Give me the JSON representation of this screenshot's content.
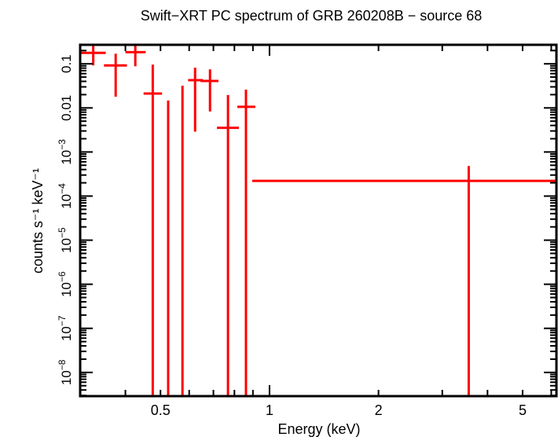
{
  "chart_data": {
    "type": "scatter",
    "title": "Swift−XRT PC spectrum of GRB 260208B − source 68",
    "xlabel": "Energy (keV)",
    "ylabel": "counts s⁻¹ keV⁻¹",
    "xscale": "log",
    "yscale": "log",
    "xlim": [
      0.3,
      6.2
    ],
    "ylim": [
      2.9e-09,
      0.27
    ],
    "grid": false,
    "x_tick_labels": [
      {
        "value": 0.5,
        "label": "0.5"
      },
      {
        "value": 1,
        "label": "1"
      },
      {
        "value": 2,
        "label": "2"
      },
      {
        "value": 5,
        "label": "5"
      }
    ],
    "y_tick_labels": [
      {
        "value": 0.1,
        "base": "0.1",
        "exp": ""
      },
      {
        "value": 0.01,
        "base": "0.01",
        "exp": ""
      },
      {
        "value": 0.001,
        "base": "10",
        "exp": "−3"
      },
      {
        "value": 0.0001,
        "base": "10",
        "exp": "−4"
      },
      {
        "value": 1e-05,
        "base": "10",
        "exp": "−5"
      },
      {
        "value": 1e-06,
        "base": "10",
        "exp": "−6"
      },
      {
        "value": 1e-07,
        "base": "10",
        "exp": "−7"
      },
      {
        "value": 1e-08,
        "base": "10",
        "exp": "−8"
      }
    ],
    "series": [
      {
        "color": "#ff0000",
        "points": [
          {
            "x": 0.326,
            "xlo": 0.3,
            "xhi": 0.353,
            "y": 0.177,
            "ylo": 0.092,
            "yhi": 0.27
          },
          {
            "x": 0.376,
            "xlo": 0.349,
            "xhi": 0.404,
            "y": 0.092,
            "ylo": 0.018,
            "yhi": 0.17
          },
          {
            "x": 0.426,
            "xlo": 0.4,
            "xhi": 0.455,
            "y": 0.184,
            "ylo": 0.088,
            "yhi": 0.29
          },
          {
            "x": 0.476,
            "xlo": 0.449,
            "xhi": 0.505,
            "y": 0.0212,
            "ylo": null,
            "yhi": 0.096
          },
          {
            "x": 0.525,
            "xlo": null,
            "xhi": null,
            "y": null,
            "ylo": null,
            "yhi": 0.0147
          },
          {
            "x": 0.575,
            "xlo": null,
            "xhi": null,
            "y": null,
            "ylo": null,
            "yhi": 0.0319
          },
          {
            "x": 0.623,
            "xlo": 0.596,
            "xhi": 0.655,
            "y": 0.0425,
            "ylo": 0.0029,
            "yhi": 0.0816
          },
          {
            "x": 0.685,
            "xlo": 0.645,
            "xhi": 0.723,
            "y": 0.0408,
            "ylo": 0.0083,
            "yhi": 0.075
          },
          {
            "x": 0.768,
            "xlo": 0.716,
            "xhi": 0.823,
            "y": 0.00354,
            "ylo": null,
            "yhi": 0.0196
          },
          {
            "x": 0.861,
            "xlo": 0.815,
            "xhi": 0.914,
            "y": 0.0106,
            "ylo": null,
            "yhi": 0.026
          },
          {
            "x": 3.55,
            "xlo": 0.896,
            "xhi": 6.2,
            "y": 0.000221,
            "ylo": null,
            "yhi": 0.00048
          }
        ]
      }
    ]
  }
}
